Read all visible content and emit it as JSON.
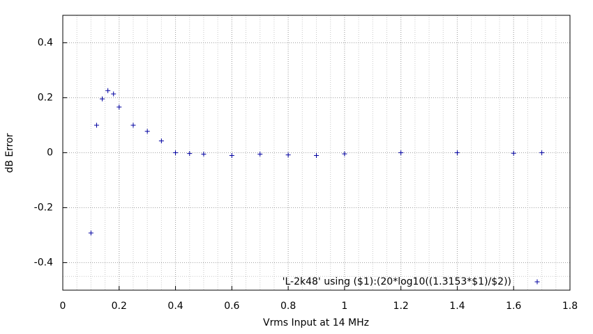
{
  "chart_data": {
    "type": "scatter",
    "xlabel": "Vrms Input at 14 MHz",
    "ylabel": "dB Error",
    "xlim": [
      0,
      1.8
    ],
    "ylim": [
      -0.5,
      0.5
    ],
    "xticks": [
      0,
      0.2,
      0.4,
      0.6,
      0.8,
      1,
      1.2,
      1.4,
      1.6,
      1.8
    ],
    "yticks": [
      -0.4,
      -0.2,
      0,
      0.2,
      0.4
    ],
    "grid": true,
    "minor_grid_subdivisions": 4,
    "legend_position": "bottom right",
    "series": [
      {
        "name": "'L-2k48' using ($1):(20*log10((1.3153*$1)/$2))",
        "color": "#0000a0",
        "x": [
          0.1,
          0.12,
          0.14,
          0.16,
          0.18,
          0.2,
          0.25,
          0.3,
          0.35,
          0.4,
          0.45,
          0.5,
          0.6,
          0.7,
          0.8,
          0.9,
          1,
          1.2,
          1.4,
          1.6,
          1.7
        ],
        "values": [
          -0.292,
          0.1,
          0.196,
          0.226,
          0.214,
          0.166,
          0.1,
          0.078,
          0.043,
          0,
          -0.003,
          -0.005,
          -0.01,
          -0.005,
          -0.008,
          -0.01,
          -0.004,
          0,
          0,
          -0.002,
          0
        ]
      }
    ]
  }
}
